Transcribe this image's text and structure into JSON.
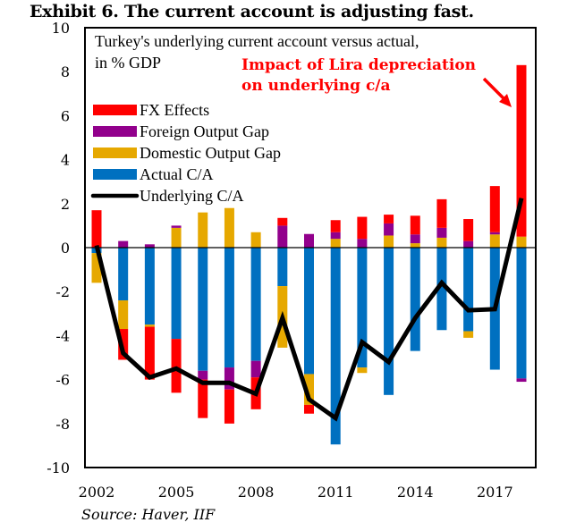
{
  "title": "Exhibit 6. The current account is adjusting fast.",
  "source": "Source: Haver, IIF",
  "chart_data": {
    "type": "bar",
    "stacked": true,
    "title": "Turkey's underlying current account versus actual,",
    "subtitle": "in % GDP",
    "xlabel": "",
    "ylabel": "",
    "ylim": [
      -10,
      10
    ],
    "yticks": [
      10,
      8,
      6,
      4,
      2,
      0,
      -2,
      -4,
      -6,
      -8,
      -10
    ],
    "categories": [
      "2002",
      "2003",
      "2004",
      "2005",
      "2006",
      "2007",
      "2008",
      "2009",
      "2010",
      "2011",
      "2012",
      "2013",
      "2014",
      "2015",
      "2016",
      "2017",
      "2018"
    ],
    "xtick_labels": [
      "2002",
      "2005",
      "2008",
      "2011",
      "2014",
      "2017"
    ],
    "grid": false,
    "legend_position": "top-left",
    "series": [
      {
        "name": "Actual C/A",
        "kind": "bar",
        "color": "#0070c0",
        "values": [
          -0.25,
          -2.4,
          -3.5,
          -4.15,
          -5.6,
          -5.45,
          -5.15,
          -1.75,
          -5.75,
          -8.95,
          -5.45,
          -6.7,
          -4.7,
          -3.75,
          -3.8,
          -5.55,
          -5.95
        ]
      },
      {
        "name": "Domestic Output Gap",
        "kind": "bar",
        "color": "#e6a800",
        "values": [
          -1.35,
          -1.3,
          -0.1,
          0.9,
          1.6,
          1.8,
          0.7,
          -2.8,
          -1.4,
          0.4,
          -0.25,
          0.55,
          0.2,
          0.45,
          -0.3,
          0.6,
          0.5
        ]
      },
      {
        "name": "Foreign Output Gap",
        "kind": "bar",
        "color": "#92008c",
        "values": [
          0.0,
          0.3,
          0.15,
          0.1,
          -0.4,
          -1.0,
          -0.75,
          1.0,
          0.62,
          0.3,
          0.4,
          0.55,
          0.4,
          0.45,
          0.3,
          0.1,
          -0.15
        ]
      },
      {
        "name": "FX Effects",
        "kind": "bar",
        "color": "#ff0000",
        "values": [
          1.7,
          -1.4,
          -2.4,
          -2.45,
          -1.75,
          -1.55,
          -1.45,
          0.35,
          -0.4,
          0.55,
          1.0,
          0.4,
          0.85,
          1.3,
          1.0,
          2.1,
          7.8
        ]
      },
      {
        "name": "Underlying C/A",
        "kind": "line",
        "color": "#000000",
        "values": [
          0.1,
          -4.8,
          -5.9,
          -5.5,
          -6.15,
          -6.15,
          -6.65,
          -3.2,
          -6.9,
          -7.75,
          -4.3,
          -5.2,
          -3.2,
          -1.6,
          -2.85,
          -2.8,
          2.25
        ]
      }
    ],
    "legend": [
      {
        "name": "FX Effects",
        "color": "#ff0000",
        "kind": "bar"
      },
      {
        "name": "Foreign Output Gap",
        "color": "#92008c",
        "kind": "bar"
      },
      {
        "name": "Domestic Output Gap",
        "color": "#e6a800",
        "kind": "bar"
      },
      {
        "name": "Actual C/A",
        "color": "#0070c0",
        "kind": "bar"
      },
      {
        "name": "Underlying C/A",
        "color": "#000000",
        "kind": "line"
      }
    ],
    "annotations": [
      {
        "text_line1": "Impact of Lira depreciation",
        "text_line2": "on underlying c/a",
        "color": "#ff0000",
        "points_to": "2018"
      }
    ]
  }
}
